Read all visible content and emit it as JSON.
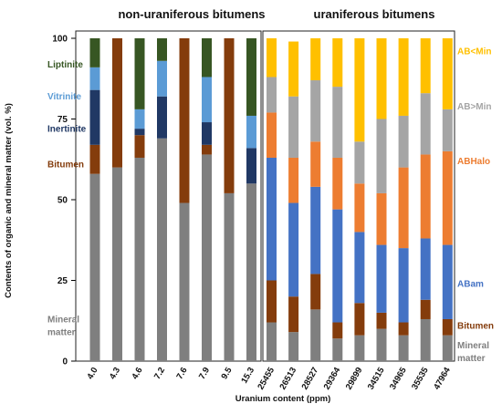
{
  "chart_data": {
    "type": "bar",
    "stacked": true,
    "ylabel": "Contents of organic and mineral matter (vol. %)",
    "xlabel": "Uranium content (ppm)",
    "ylim": [
      0,
      100
    ],
    "yticks": [
      0,
      25,
      50,
      75,
      100
    ],
    "panels": [
      {
        "title": "non-uraniferous bitumens",
        "categories": [
          "4.0",
          "4.3",
          "4.6",
          "7.2",
          "7.6",
          "7.9",
          "9.5",
          "15.3"
        ],
        "series": [
          {
            "name": "Mineral matter",
            "color": "#7f7f7f",
            "values": [
              58,
              60,
              63,
              69,
              49,
              64,
              52,
              55
            ]
          },
          {
            "name": "Bitumen",
            "color": "#843c0c",
            "values": [
              9,
              40,
              7,
              0,
              51,
              3,
              48,
              0
            ]
          },
          {
            "name": "Inertinite",
            "color": "#203864",
            "values": [
              17,
              0,
              2,
              13,
              0,
              7,
              0,
              11
            ]
          },
          {
            "name": "Vitrinite",
            "color": "#5b9bd5",
            "values": [
              7,
              0,
              6,
              11,
              0,
              14,
              0,
              10
            ]
          },
          {
            "name": "Liptinite",
            "color": "#375623",
            "values": [
              9,
              0,
              22,
              7,
              0,
              12,
              0,
              24
            ]
          }
        ]
      },
      {
        "title": "uraniferous bitumens",
        "categories": [
          "25455",
          "26513",
          "28527",
          "29364",
          "29899",
          "34515",
          "34965",
          "35535",
          "47964"
        ],
        "series": [
          {
            "name": "Mineral matter",
            "color": "#7f7f7f",
            "values": [
              12,
              9,
              16,
              7,
              8,
              10,
              8,
              13,
              8
            ]
          },
          {
            "name": "Bitumen",
            "color": "#843c0c",
            "values": [
              13,
              11,
              11,
              5,
              10,
              5,
              4,
              6,
              5
            ]
          },
          {
            "name": "ABam",
            "color": "#4472c4",
            "values": [
              38,
              29,
              27,
              35,
              22,
              21,
              23,
              19,
              23
            ]
          },
          {
            "name": "ABHalo",
            "color": "#ed7d31",
            "values": [
              14,
              14,
              14,
              16,
              15,
              16,
              25,
              26,
              29
            ]
          },
          {
            "name": "AB>Min",
            "color": "#a5a5a5",
            "values": [
              11,
              19,
              19,
              22,
              13,
              23,
              16,
              19,
              13
            ]
          },
          {
            "name": "AB<Min",
            "color": "#ffc000",
            "values": [
              12,
              17,
              13,
              15,
              32,
              25,
              24,
              17,
              22
            ]
          }
        ]
      }
    ],
    "labels": {
      "left": [
        {
          "text": "Liptinite",
          "color": "#375623",
          "y": 92
        },
        {
          "text": "Vitrinite",
          "color": "#5b9bd5",
          "y": 82
        },
        {
          "text": "Inertinite",
          "color": "#203864",
          "y": 72
        },
        {
          "text": "Bitumen",
          "color": "#843c0c",
          "y": 61
        },
        {
          "text": "Mineral",
          "color": "#7f7f7f",
          "y": 13
        },
        {
          "text": "matter",
          "color": "#7f7f7f",
          "y": 9
        }
      ],
      "right": [
        {
          "text": "AB<Min",
          "color": "#ffc000",
          "y": 96
        },
        {
          "text": "AB>Min",
          "color": "#a5a5a5",
          "y": 79
        },
        {
          "text": "ABHalo",
          "color": "#ed7d31",
          "y": 62
        },
        {
          "text": "ABam",
          "color": "#4472c4",
          "y": 24
        },
        {
          "text": "Bitumen",
          "color": "#843c0c",
          "y": 11
        },
        {
          "text": "Mineral",
          "color": "#7f7f7f",
          "y": 5
        },
        {
          "text": "matter",
          "color": "#7f7f7f",
          "y": 1
        }
      ]
    }
  }
}
